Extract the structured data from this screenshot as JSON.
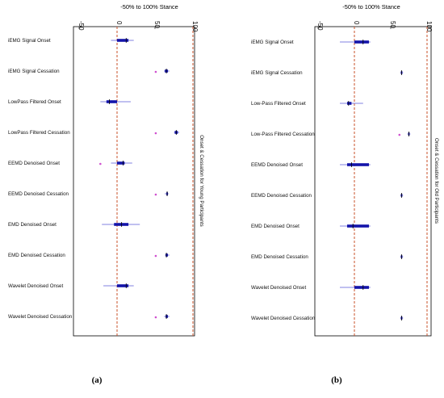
{
  "chart_data": [
    {
      "panel": "(a)",
      "type": "boxplot",
      "orientation": "horizontal",
      "axis_title": "-50% to 100% Stance",
      "xticks": [
        "-50",
        "0",
        "50",
        "100"
      ],
      "xlim": [
        -50,
        100
      ],
      "reference_lines": [
        {
          "value": 0,
          "color": "#c8502a",
          "style": "dashed"
        },
        {
          "value": 100,
          "color": "#c8502a",
          "style": "dashed"
        }
      ],
      "side_label": "Onset & Cessation for Young Participants",
      "caption": "(a)",
      "series": [
        {
          "label": "iEMG Signal Onset",
          "min": -8,
          "q1": 0,
          "median": 12,
          "q3": 15,
          "max": 22,
          "outliers": []
        },
        {
          "label": "iEMG Signal Cessation",
          "min": 62,
          "q1": 63,
          "median": 65,
          "q3": 67,
          "max": 69,
          "outliers": [
            51
          ]
        },
        {
          "label": "LowPass Filtered Onset",
          "min": -22,
          "q1": -14,
          "median": -10,
          "q3": 0,
          "max": 18,
          "outliers": []
        },
        {
          "label": "LowPass Filtered Cessation",
          "min": 75,
          "q1": 76,
          "median": 78,
          "q3": 80,
          "max": 82,
          "outliers": [
            51
          ]
        },
        {
          "label": "EEMD Denoised Onset",
          "min": -8,
          "q1": 0,
          "median": 8,
          "q3": 10,
          "max": 20,
          "outliers": [
            -22
          ]
        },
        {
          "label": "EEMD Denoised Cessation",
          "min": 63,
          "q1": 65,
          "median": 66,
          "q3": 67,
          "max": 68,
          "outliers": [
            51
          ]
        },
        {
          "label": "EMD Denoised Onset",
          "min": -20,
          "q1": -4,
          "median": 6,
          "q3": 15,
          "max": 30,
          "outliers": []
        },
        {
          "label": "EMD Denoised Cessation",
          "min": 63,
          "q1": 64,
          "median": 65,
          "q3": 67,
          "max": 69,
          "outliers": [
            51
          ]
        },
        {
          "label": "Wavelet Denoised Onset",
          "min": -18,
          "q1": 0,
          "median": 12,
          "q3": 15,
          "max": 22,
          "outliers": []
        },
        {
          "label": "Wavelet Denoised Cessation",
          "min": 62,
          "q1": 64,
          "median": 65,
          "q3": 67,
          "max": 69,
          "outliers": [
            51
          ]
        }
      ]
    },
    {
      "panel": "(b)",
      "type": "boxplot",
      "orientation": "horizontal",
      "axis_title": "-50% to 100% Stance",
      "xticks": [
        "-50",
        "0",
        "50",
        "100"
      ],
      "xlim": [
        -50,
        100
      ],
      "reference_lines": [
        {
          "value": 0,
          "color": "#c8502a",
          "style": "dashed"
        },
        {
          "value": 100,
          "color": "#c8502a",
          "style": "dashed"
        }
      ],
      "side_label": "Onset & Cessation for Old Participants",
      "caption": "(b)",
      "series": [
        {
          "label": "iEMG Signal Onset",
          "min": -20,
          "q1": 0,
          "median": 12,
          "q3": 20,
          "max": 22,
          "outliers": []
        },
        {
          "label": "iEMG Signal Cessation",
          "min": 63,
          "q1": 64,
          "median": 65,
          "q3": 66,
          "max": 67,
          "outliers": []
        },
        {
          "label": "Low-Pass Filtered Onset",
          "min": -20,
          "q1": -10,
          "median": -8,
          "q3": -4,
          "max": 12,
          "outliers": []
        },
        {
          "label": "Low-Pass Filtered Cessation",
          "min": 73,
          "q1": 74,
          "median": 75,
          "q3": 76,
          "max": 77,
          "outliers": [
            62
          ]
        },
        {
          "label": "EEMD Denoised Onset",
          "min": -20,
          "q1": -10,
          "median": -4,
          "q3": 20,
          "max": 22,
          "outliers": []
        },
        {
          "label": "EEMD Denoised Cessation",
          "min": 63,
          "q1": 64,
          "median": 65,
          "q3": 66,
          "max": 67,
          "outliers": []
        },
        {
          "label": "EMD Denoised Onset",
          "min": -20,
          "q1": -10,
          "median": -2,
          "q3": 20,
          "max": 22,
          "outliers": []
        },
        {
          "label": "EMD Denoised Cessation",
          "min": 63,
          "q1": 64,
          "median": 65,
          "q3": 66,
          "max": 67,
          "outliers": []
        },
        {
          "label": "Wavelet Denoised Onset",
          "min": -20,
          "q1": 0,
          "median": 12,
          "q3": 20,
          "max": 22,
          "outliers": []
        },
        {
          "label": "Wavelet Denoised Cessation",
          "min": 63,
          "q1": 64,
          "median": 65,
          "q3": 66,
          "max": 67,
          "outliers": []
        }
      ]
    }
  ],
  "colors": {
    "box": "#1414aa",
    "whisker": "#8080e0",
    "outlier": "#d050d0",
    "median": "#000000",
    "reference": "#c8502a"
  }
}
